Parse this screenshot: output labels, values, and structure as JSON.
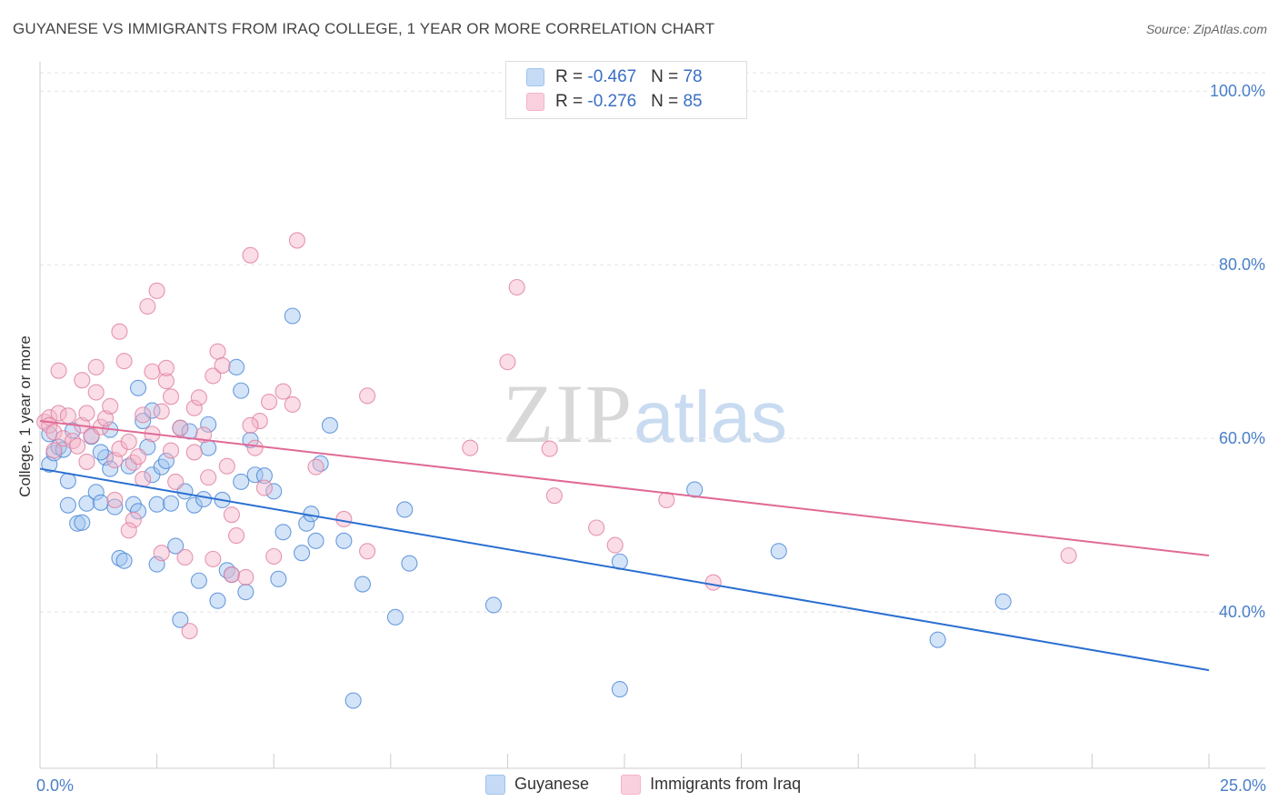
{
  "title": "GUYANESE VS IMMIGRANTS FROM IRAQ COLLEGE, 1 YEAR OR MORE CORRELATION CHART",
  "source": "Source: ZipAtlas.com",
  "watermark": {
    "zip": "ZIP",
    "atlas": "atlas"
  },
  "legend": {
    "rows": [
      {
        "r_label": "R = ",
        "r_value": "-0.467",
        "n_label": "N = ",
        "n_value": "78",
        "color": "#9ec3ef"
      },
      {
        "r_label": "R = ",
        "r_value": "-0.276",
        "n_label": "N = ",
        "n_value": "85",
        "color": "#f5b3c8"
      }
    ]
  },
  "bottom_legend": [
    {
      "label": "Guyanese",
      "color": "#9ec3ef"
    },
    {
      "label": "Immigrants from Iraq",
      "color": "#f5b3c8"
    }
  ],
  "chart_data": {
    "type": "scatter",
    "ylabel": "College, 1 year or more",
    "xlim": [
      0,
      25
    ],
    "ylim": [
      22,
      104
    ],
    "x_tick_labels": [
      {
        "value": 0,
        "label": "0.0%"
      },
      {
        "value": 25,
        "label": "25.0%"
      }
    ],
    "y_tick_labels": [
      {
        "value": 40,
        "label": "40.0%"
      },
      {
        "value": 60,
        "label": "60.0%"
      },
      {
        "value": 80,
        "label": "80.0%"
      },
      {
        "value": 100,
        "label": "100.0%"
      }
    ],
    "grid": true,
    "series": [
      {
        "name": "Guyanese",
        "color": "#4a86d6",
        "fill": "#9ec3ef",
        "trend": {
          "x0": 0,
          "y0": 56.5,
          "x1": 25,
          "y1": 33.3,
          "color": "#2a6fd1"
        },
        "points": [
          [
            0.2,
            60.5
          ],
          [
            0.2,
            57.0
          ],
          [
            0.3,
            58.3
          ],
          [
            0.4,
            59.0
          ],
          [
            0.5,
            58.7
          ],
          [
            0.6,
            55.1
          ],
          [
            0.6,
            52.3
          ],
          [
            0.8,
            50.2
          ],
          [
            0.9,
            50.3
          ],
          [
            1.0,
            52.5
          ],
          [
            1.1,
            60.2
          ],
          [
            1.2,
            53.8
          ],
          [
            1.3,
            52.6
          ],
          [
            1.4,
            57.8
          ],
          [
            1.5,
            56.5
          ],
          [
            1.5,
            61.0
          ],
          [
            1.6,
            52.1
          ],
          [
            1.7,
            46.2
          ],
          [
            1.8,
            45.9
          ],
          [
            1.9,
            56.8
          ],
          [
            2.0,
            52.4
          ],
          [
            2.1,
            65.8
          ],
          [
            2.1,
            51.6
          ],
          [
            2.2,
            62.0
          ],
          [
            2.3,
            59.0
          ],
          [
            2.4,
            55.8
          ],
          [
            2.5,
            52.4
          ],
          [
            2.5,
            45.5
          ],
          [
            2.6,
            56.7
          ],
          [
            2.7,
            57.4
          ],
          [
            2.8,
            52.5
          ],
          [
            2.9,
            47.6
          ],
          [
            3.0,
            39.1
          ],
          [
            3.0,
            61.2
          ],
          [
            3.1,
            53.9
          ],
          [
            3.2,
            60.8
          ],
          [
            3.3,
            52.3
          ],
          [
            3.4,
            43.6
          ],
          [
            3.5,
            53.0
          ],
          [
            3.6,
            58.9
          ],
          [
            3.6,
            61.6
          ],
          [
            3.8,
            41.3
          ],
          [
            3.9,
            52.9
          ],
          [
            4.0,
            44.8
          ],
          [
            4.1,
            44.3
          ],
          [
            4.2,
            68.2
          ],
          [
            4.3,
            55.0
          ],
          [
            4.3,
            65.5
          ],
          [
            4.4,
            42.3
          ],
          [
            4.5,
            59.8
          ],
          [
            4.6,
            55.8
          ],
          [
            4.8,
            55.7
          ],
          [
            5.0,
            53.9
          ],
          [
            5.1,
            43.8
          ],
          [
            5.2,
            49.2
          ],
          [
            5.4,
            74.1
          ],
          [
            5.6,
            46.8
          ],
          [
            5.7,
            50.2
          ],
          [
            5.8,
            51.3
          ],
          [
            5.9,
            48.2
          ],
          [
            6.0,
            57.1
          ],
          [
            6.2,
            61.5
          ],
          [
            6.5,
            48.2
          ],
          [
            6.7,
            29.8
          ],
          [
            6.9,
            43.2
          ],
          [
            7.6,
            39.4
          ],
          [
            7.8,
            51.8
          ],
          [
            7.9,
            45.6
          ],
          [
            9.7,
            40.8
          ],
          [
            12.4,
            31.1
          ],
          [
            12.4,
            45.8
          ],
          [
            14.0,
            54.1
          ],
          [
            15.8,
            47.0
          ],
          [
            19.2,
            36.8
          ],
          [
            20.6,
            41.2
          ],
          [
            0.7,
            60.9
          ],
          [
            1.3,
            58.4
          ],
          [
            2.4,
            63.2
          ]
        ]
      },
      {
        "name": "Immigrants from Iraq",
        "color": "#e07e9f",
        "fill": "#f5b3c8",
        "trend": {
          "x0": 0,
          "y0": 62.0,
          "x1": 25,
          "y1": 46.5,
          "color": "#e06a96"
        },
        "points": [
          [
            0.1,
            61.9
          ],
          [
            0.2,
            62.4
          ],
          [
            0.2,
            61.5
          ],
          [
            0.3,
            60.7
          ],
          [
            0.4,
            67.8
          ],
          [
            0.4,
            62.9
          ],
          [
            0.5,
            60.0
          ],
          [
            0.6,
            62.6
          ],
          [
            0.7,
            59.7
          ],
          [
            0.8,
            59.1
          ],
          [
            0.9,
            66.7
          ],
          [
            0.9,
            61.5
          ],
          [
            1.0,
            57.3
          ],
          [
            1.1,
            60.3
          ],
          [
            1.2,
            68.2
          ],
          [
            1.2,
            65.3
          ],
          [
            1.3,
            61.3
          ],
          [
            1.4,
            62.3
          ],
          [
            1.5,
            63.7
          ],
          [
            1.6,
            57.5
          ],
          [
            1.6,
            52.9
          ],
          [
            1.7,
            72.3
          ],
          [
            1.7,
            58.8
          ],
          [
            1.8,
            68.9
          ],
          [
            1.9,
            59.6
          ],
          [
            2.0,
            57.2
          ],
          [
            2.0,
            50.6
          ],
          [
            2.1,
            57.9
          ],
          [
            2.2,
            62.7
          ],
          [
            2.2,
            55.3
          ],
          [
            2.3,
            75.2
          ],
          [
            2.4,
            60.5
          ],
          [
            2.4,
            67.7
          ],
          [
            2.5,
            77.0
          ],
          [
            2.6,
            63.1
          ],
          [
            2.6,
            46.8
          ],
          [
            2.7,
            66.6
          ],
          [
            2.7,
            68.1
          ],
          [
            2.8,
            58.6
          ],
          [
            2.8,
            64.8
          ],
          [
            2.9,
            55.0
          ],
          [
            3.0,
            61.2
          ],
          [
            3.1,
            46.3
          ],
          [
            3.2,
            37.8
          ],
          [
            3.3,
            63.5
          ],
          [
            3.4,
            64.7
          ],
          [
            3.5,
            60.4
          ],
          [
            3.6,
            55.5
          ],
          [
            3.7,
            67.2
          ],
          [
            3.7,
            46.1
          ],
          [
            3.8,
            70.0
          ],
          [
            3.9,
            68.4
          ],
          [
            4.0,
            56.8
          ],
          [
            4.1,
            44.3
          ],
          [
            4.1,
            51.2
          ],
          [
            4.2,
            48.8
          ],
          [
            4.4,
            44.0
          ],
          [
            4.5,
            81.1
          ],
          [
            4.6,
            58.9
          ],
          [
            4.7,
            62.0
          ],
          [
            4.8,
            54.3
          ],
          [
            4.9,
            64.2
          ],
          [
            5.0,
            46.4
          ],
          [
            5.2,
            65.4
          ],
          [
            5.4,
            63.9
          ],
          [
            5.5,
            82.8
          ],
          [
            5.9,
            56.7
          ],
          [
            6.5,
            50.7
          ],
          [
            7.0,
            47.0
          ],
          [
            7.0,
            64.9
          ],
          [
            9.2,
            58.9
          ],
          [
            10.0,
            68.8
          ],
          [
            10.2,
            77.4
          ],
          [
            10.9,
            58.8
          ],
          [
            11.0,
            53.4
          ],
          [
            11.9,
            49.7
          ],
          [
            12.3,
            47.7
          ],
          [
            13.4,
            52.9
          ],
          [
            14.4,
            43.4
          ],
          [
            22.0,
            46.5
          ],
          [
            0.3,
            58.6
          ],
          [
            1.0,
            62.9
          ],
          [
            1.9,
            49.4
          ],
          [
            3.3,
            58.4
          ],
          [
            4.5,
            61.5
          ]
        ]
      }
    ]
  }
}
